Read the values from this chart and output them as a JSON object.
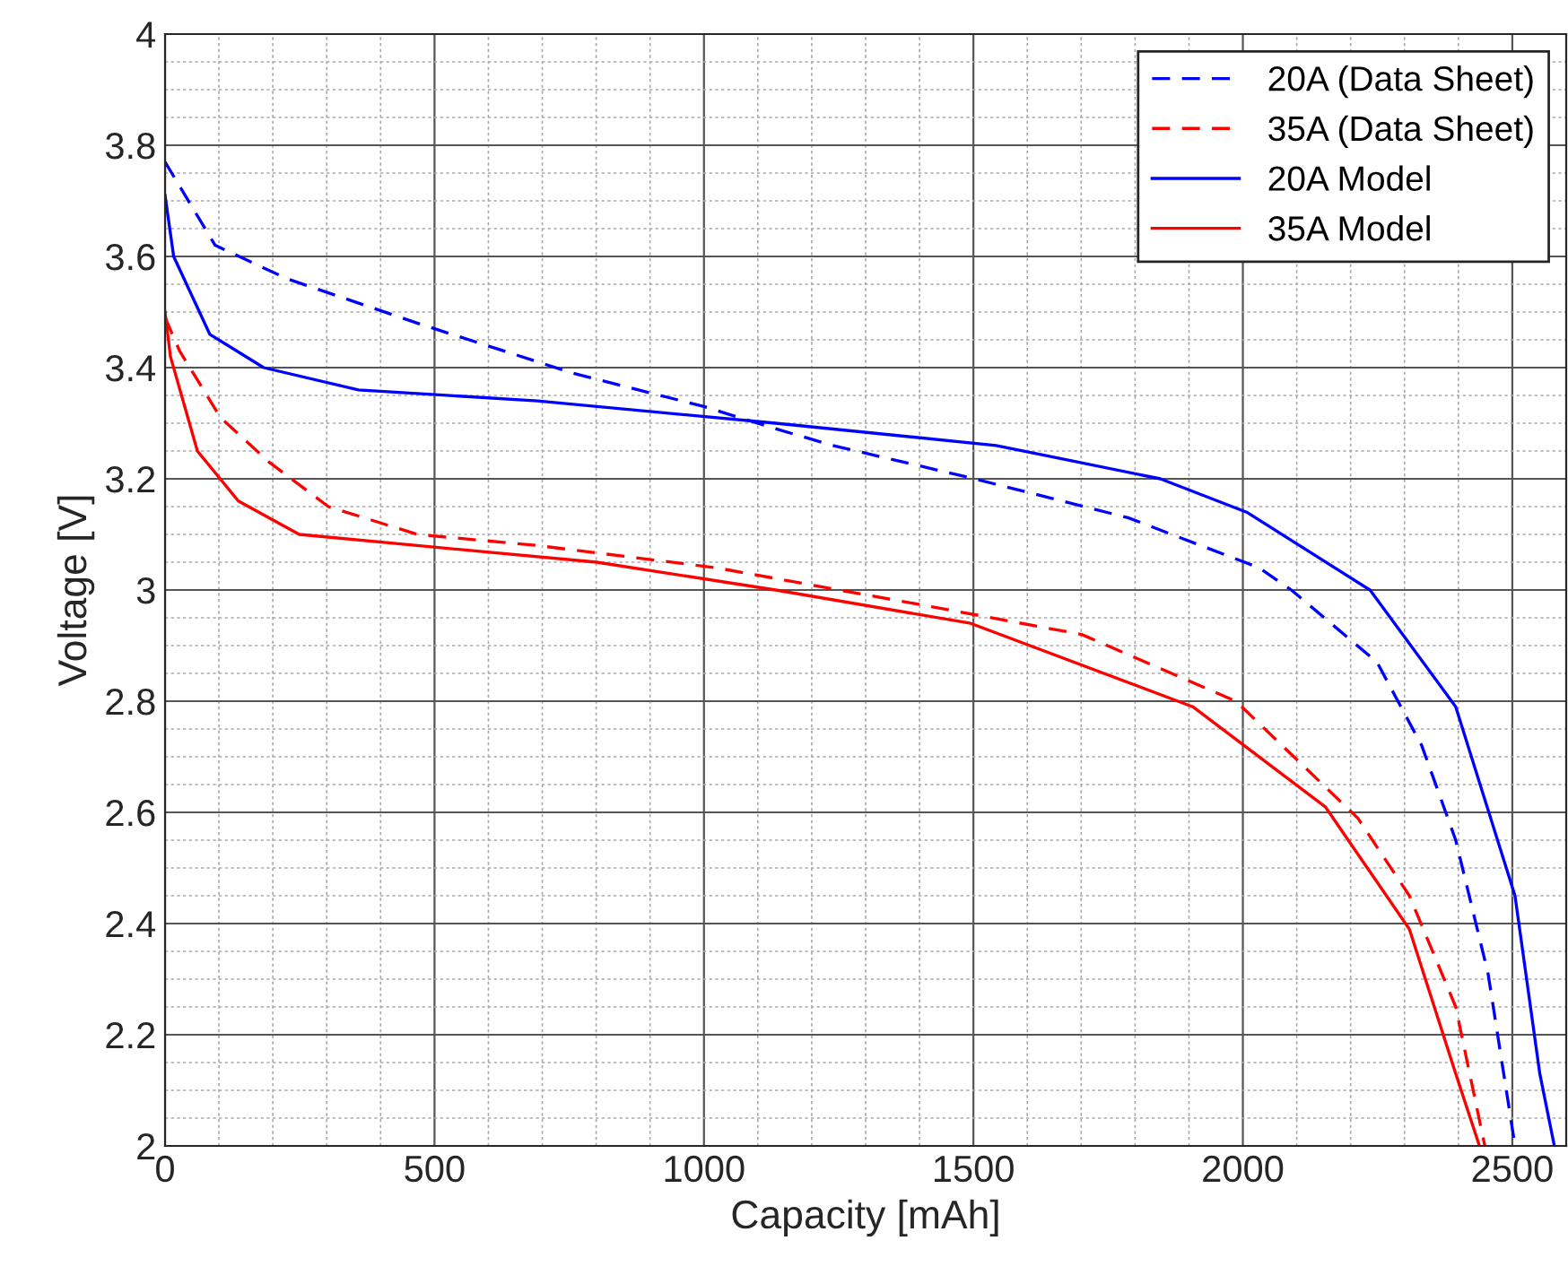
{
  "chart_data": {
    "type": "line",
    "xlabel": "Capacity [mAh]",
    "ylabel": "Voltage [V]",
    "xlim": [
      0,
      2600
    ],
    "ylim": [
      2,
      4
    ],
    "xticks": [
      0,
      500,
      1000,
      1500,
      2000,
      2500
    ],
    "yticks": [
      2,
      2.2,
      2.4,
      2.6,
      2.8,
      3,
      3.2,
      3.4,
      3.6,
      3.8,
      4
    ],
    "grid": true,
    "legend": "top right",
    "marker": "none",
    "series": [
      {
        "name": "20A (Data Sheet)",
        "color": "#0000ff",
        "line_style": "dashed",
        "x": [
          0,
          93,
          226,
          468,
          757,
          1000,
          1133,
          1239,
          1502,
          1787,
          2030,
          2090,
          2249,
          2332,
          2395,
          2455,
          2505
        ],
        "values": [
          3.77,
          3.62,
          3.56,
          3.48,
          3.39,
          3.33,
          3.29,
          3.26,
          3.2,
          3.13,
          3.04,
          3.0,
          2.87,
          2.72,
          2.55,
          2.31,
          2.0
        ]
      },
      {
        "name": "35A (Data Sheet)",
        "color": "#ff0000",
        "line_style": "dashed",
        "x": [
          0,
          27,
          103,
          193,
          303,
          468,
          691,
          1023,
          1422,
          1701,
          1987,
          2213,
          2309,
          2395,
          2449
        ],
        "values": [
          3.49,
          3.43,
          3.31,
          3.23,
          3.15,
          3.1,
          3.08,
          3.04,
          2.97,
          2.92,
          2.8,
          2.59,
          2.45,
          2.25,
          2.0
        ]
      },
      {
        "name": "20A Model",
        "color": "#0000ff",
        "line_style": "solid",
        "x": [
          0,
          16,
          83,
          183,
          359,
          691,
          1133,
          1542,
          1847,
          2007,
          2236,
          2395,
          2505,
          2551,
          2578
        ],
        "values": [
          3.71,
          3.6,
          3.46,
          3.4,
          3.36,
          3.34,
          3.3,
          3.26,
          3.2,
          3.14,
          3.0,
          2.79,
          2.45,
          2.13,
          2.0
        ]
      },
      {
        "name": "35A Model",
        "color": "#ff0000",
        "line_style": "solid",
        "x": [
          0,
          10,
          60,
          136,
          249,
          468,
          801,
          1133,
          1495,
          1907,
          2153,
          2309,
          2395,
          2439
        ],
        "values": [
          3.5,
          3.42,
          3.25,
          3.16,
          3.1,
          3.08,
          3.05,
          3.0,
          2.94,
          2.79,
          2.61,
          2.39,
          2.13,
          2.0
        ]
      }
    ]
  }
}
